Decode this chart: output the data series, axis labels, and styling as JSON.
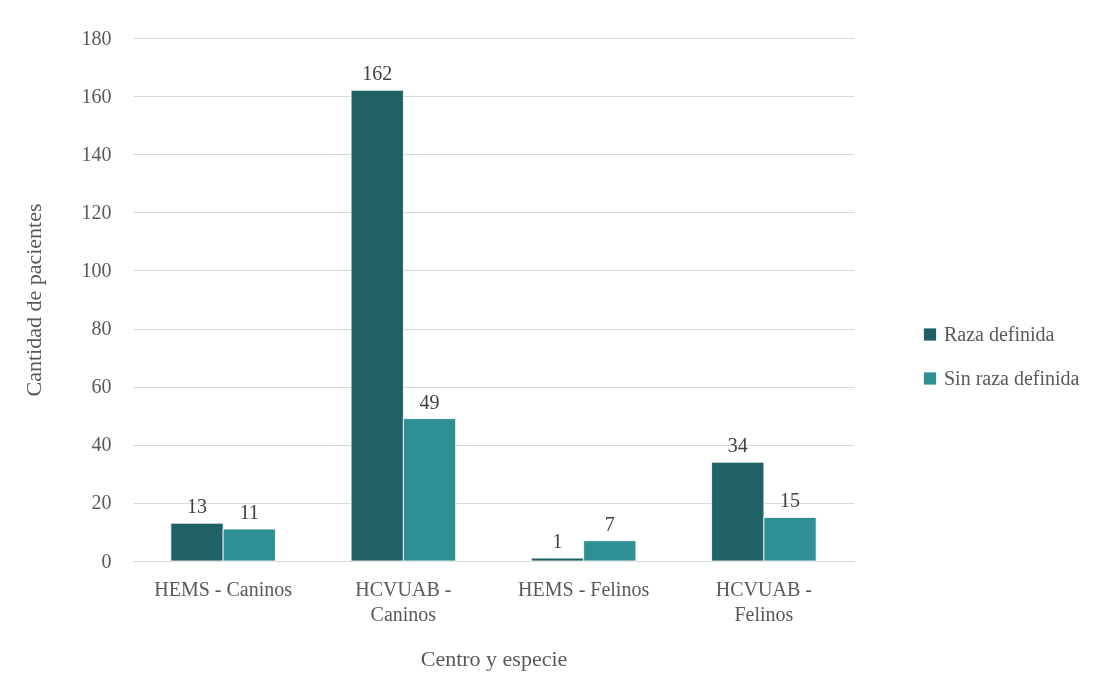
{
  "chart_data": {
    "type": "bar",
    "xlabel": "Centro y especie",
    "ylabel": "Cantidad de pacientes",
    "categories": [
      "HEMS - Caninos",
      "HCVUAB - Caninos",
      "HEMS - Felinos",
      "HCVUAB - Felinos"
    ],
    "series": [
      {
        "name": "Raza definida",
        "color": "#1f6165",
        "values": [
          13,
          162,
          1,
          34
        ]
      },
      {
        "name": "Sin raza definida",
        "color": "#2e9095",
        "values": [
          11,
          49,
          7,
          15
        ]
      }
    ],
    "ylim": [
      0,
      180
    ],
    "yticks": [
      0,
      20,
      40,
      60,
      80,
      100,
      120,
      140,
      160,
      180
    ],
    "grid": "y",
    "legend": "right",
    "data_labels": true
  }
}
